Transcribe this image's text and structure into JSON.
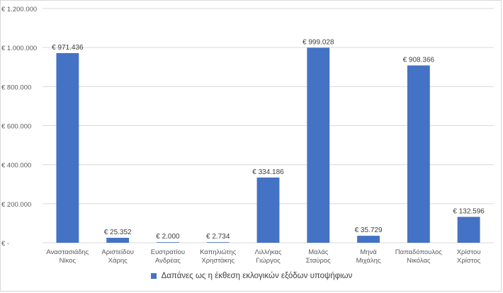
{
  "chart_data": {
    "type": "bar",
    "categories": [
      [
        "Αναστασιάδης",
        "Νίκος"
      ],
      [
        "Αριστείδου",
        "Χάρης"
      ],
      [
        "Ευστρατίου",
        "Ανδρέας"
      ],
      [
        "Καπηλιώτης",
        "Χρηστάκης"
      ],
      [
        "Λιλλήκας",
        "Γιώργος"
      ],
      [
        "Μαλάς",
        "Σταύρος"
      ],
      [
        "Μηνά",
        "Μιχάλης"
      ],
      [
        "Παπαδόπουλος",
        "Νικόλας"
      ],
      [
        "Χρίστου",
        "Χρίστος"
      ]
    ],
    "series": [
      {
        "name": "Δαπάνες ως η έκθεση εκλογικών εξόδων υποψήφιων",
        "values": [
          971436,
          25352,
          2000,
          2734,
          334186,
          999028,
          35729,
          908366,
          132596
        ],
        "data_labels": [
          "€ 971.436",
          "€ 25.352",
          "€ 2.000",
          "€ 2.734",
          "€ 334.186",
          "€ 999.028",
          "€ 35.729",
          "€ 908.366",
          "€ 132.596"
        ],
        "color": "#4472c4"
      }
    ],
    "ylim": [
      0,
      1200000
    ],
    "yticks": [
      0,
      200000,
      400000,
      600000,
      800000,
      1000000,
      1200000
    ],
    "ytick_labels": [
      "€ -",
      "€ 200.000",
      "€ 400.000",
      "€ 600.000",
      "€ 800.000",
      "€ 1.000.000",
      "€ 1.200.000"
    ],
    "grid": true,
    "legend_position": "bottom"
  }
}
